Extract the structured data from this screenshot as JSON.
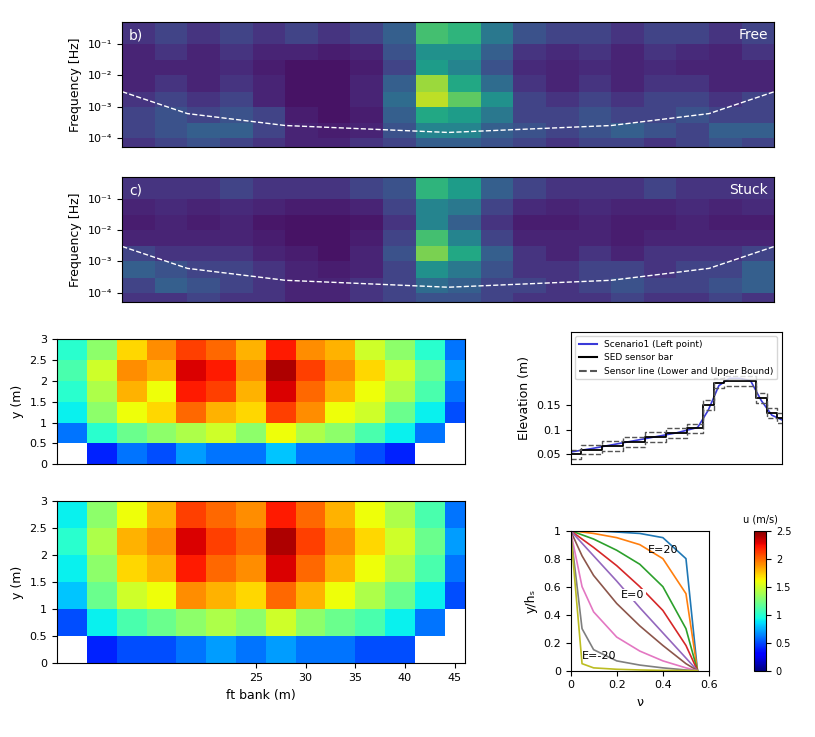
{
  "chart_data": [
    {
      "type": "heatmap",
      "panel": "b)",
      "title": "Free",
      "y_label": "Frequency [Hz]",
      "log": "y",
      "tick_labels": "y",
      "xlim": [
        0,
        20
      ],
      "ylim": [
        5e-05,
        0.5
      ],
      "yticks": [
        {
          "value": 0.0001,
          "label": "10⁻⁴"
        },
        {
          "value": 0.001,
          "label": "10⁻³"
        },
        {
          "value": 0.01,
          "label": "10⁻²"
        },
        {
          "value": 0.1,
          "label": "10⁻¹"
        }
      ],
      "x_edges": [
        0,
        1,
        2,
        3,
        4,
        5,
        6,
        7,
        8,
        9,
        10,
        11,
        12,
        13,
        14,
        15,
        16,
        17,
        18,
        19,
        20
      ],
      "y_edges": [
        5e-05,
        0.0001,
        0.0003,
        0.001,
        0.003,
        0.01,
        0.03,
        0.1,
        0.5
      ],
      "color_range": [
        0,
        1
      ],
      "cells": [
        [
          0.15,
          0.2,
          0.25,
          0.2,
          0.15,
          0.1,
          0.1,
          0.15,
          0.2,
          0.3,
          0.3,
          0.25,
          0.2,
          0.15,
          0.2,
          0.2,
          0.15,
          0.2,
          0.25,
          0.2
        ],
        [
          0.2,
          0.25,
          0.3,
          0.3,
          0.2,
          0.1,
          0.08,
          0.1,
          0.25,
          0.45,
          0.45,
          0.3,
          0.25,
          0.2,
          0.25,
          0.3,
          0.25,
          0.2,
          0.3,
          0.3
        ],
        [
          0.2,
          0.25,
          0.2,
          0.25,
          0.2,
          0.08,
          0.05,
          0.08,
          0.3,
          0.6,
          0.55,
          0.4,
          0.2,
          0.2,
          0.25,
          0.2,
          0.2,
          0.25,
          0.2,
          0.2
        ],
        [
          0.15,
          0.2,
          0.15,
          0.2,
          0.1,
          0.05,
          0.05,
          0.1,
          0.35,
          0.9,
          0.75,
          0.5,
          0.2,
          0.15,
          0.2,
          0.15,
          0.2,
          0.2,
          0.15,
          0.2
        ],
        [
          0.1,
          0.15,
          0.1,
          0.15,
          0.1,
          0.05,
          0.05,
          0.1,
          0.3,
          0.85,
          0.6,
          0.35,
          0.15,
          0.1,
          0.15,
          0.1,
          0.15,
          0.15,
          0.1,
          0.1
        ],
        [
          0.1,
          0.1,
          0.1,
          0.12,
          0.08,
          0.05,
          0.05,
          0.08,
          0.2,
          0.55,
          0.45,
          0.25,
          0.12,
          0.1,
          0.12,
          0.1,
          0.12,
          0.1,
          0.1,
          0.1
        ],
        [
          0.1,
          0.15,
          0.1,
          0.15,
          0.1,
          0.1,
          0.08,
          0.1,
          0.25,
          0.5,
          0.5,
          0.3,
          0.15,
          0.12,
          0.15,
          0.1,
          0.15,
          0.12,
          0.1,
          0.15
        ],
        [
          0.15,
          0.2,
          0.15,
          0.2,
          0.15,
          0.2,
          0.15,
          0.2,
          0.3,
          0.7,
          0.65,
          0.4,
          0.25,
          0.2,
          0.2,
          0.15,
          0.2,
          0.2,
          0.15,
          0.2
        ]
      ],
      "coi": {
        "x": [
          0,
          2,
          5,
          10,
          15,
          18,
          20
        ],
        "y": [
          0.003,
          0.0006,
          0.00025,
          0.00015,
          0.00025,
          0.0006,
          0.003
        ]
      }
    },
    {
      "type": "heatmap",
      "panel": "c)",
      "title": "Stuck",
      "y_label": "Frequency [Hz]",
      "log": "y",
      "tick_labels": "y",
      "xlim": [
        0,
        20
      ],
      "ylim": [
        5e-05,
        0.5
      ],
      "yticks": [
        {
          "value": 0.0001,
          "label": "10⁻⁴"
        },
        {
          "value": 0.001,
          "label": "10⁻³"
        },
        {
          "value": 0.01,
          "label": "10⁻²"
        },
        {
          "value": 0.1,
          "label": "10⁻¹"
        }
      ],
      "x_edges": [
        0,
        1,
        2,
        3,
        4,
        5,
        6,
        7,
        8,
        9,
        10,
        11,
        12,
        13,
        14,
        15,
        16,
        17,
        18,
        19,
        20
      ],
      "y_edges": [
        5e-05,
        0.0001,
        0.0003,
        0.001,
        0.003,
        0.01,
        0.03,
        0.1,
        0.5
      ],
      "color_range": [
        0,
        1
      ],
      "cells": [
        [
          0.15,
          0.15,
          0.2,
          0.15,
          0.15,
          0.1,
          0.1,
          0.15,
          0.2,
          0.25,
          0.25,
          0.2,
          0.15,
          0.15,
          0.15,
          0.2,
          0.15,
          0.15,
          0.2,
          0.15
        ],
        [
          0.2,
          0.3,
          0.25,
          0.2,
          0.15,
          0.1,
          0.1,
          0.15,
          0.2,
          0.35,
          0.3,
          0.2,
          0.2,
          0.15,
          0.2,
          0.25,
          0.2,
          0.2,
          0.25,
          0.3
        ],
        [
          0.3,
          0.25,
          0.2,
          0.2,
          0.15,
          0.1,
          0.08,
          0.1,
          0.2,
          0.5,
          0.4,
          0.25,
          0.15,
          0.15,
          0.2,
          0.2,
          0.15,
          0.2,
          0.2,
          0.3
        ],
        [
          0.2,
          0.15,
          0.15,
          0.15,
          0.1,
          0.08,
          0.05,
          0.1,
          0.25,
          0.8,
          0.6,
          0.3,
          0.15,
          0.1,
          0.15,
          0.1,
          0.15,
          0.15,
          0.15,
          0.2
        ],
        [
          0.1,
          0.1,
          0.1,
          0.1,
          0.08,
          0.05,
          0.05,
          0.08,
          0.2,
          0.7,
          0.45,
          0.2,
          0.1,
          0.1,
          0.1,
          0.08,
          0.1,
          0.1,
          0.1,
          0.1
        ],
        [
          0.08,
          0.1,
          0.08,
          0.1,
          0.06,
          0.05,
          0.05,
          0.06,
          0.15,
          0.45,
          0.3,
          0.15,
          0.08,
          0.08,
          0.1,
          0.08,
          0.08,
          0.1,
          0.08,
          0.08
        ],
        [
          0.1,
          0.12,
          0.1,
          0.12,
          0.1,
          0.08,
          0.08,
          0.1,
          0.2,
          0.45,
          0.4,
          0.2,
          0.12,
          0.1,
          0.12,
          0.1,
          0.1,
          0.12,
          0.1,
          0.12
        ],
        [
          0.15,
          0.15,
          0.15,
          0.2,
          0.15,
          0.15,
          0.15,
          0.2,
          0.25,
          0.65,
          0.55,
          0.3,
          0.2,
          0.15,
          0.15,
          0.15,
          0.2,
          0.15,
          0.15,
          0.15
        ]
      ],
      "coi": {
        "x": [
          0,
          2,
          5,
          10,
          15,
          18,
          20
        ],
        "y": [
          0.003,
          0.0006,
          0.00025,
          0.00015,
          0.00025,
          0.0006,
          0.003
        ]
      }
    },
    {
      "type": "heatmap",
      "y_label": "y (m)",
      "tick_labels": "y",
      "xlim": [
        5,
        46
      ],
      "ylim": [
        0,
        3
      ],
      "yticks": [
        0,
        0.5,
        1,
        1.5,
        2,
        2.5,
        3
      ],
      "x_edges": [
        5,
        8,
        11,
        14,
        17,
        20,
        23,
        26,
        29,
        32,
        35,
        38,
        41,
        44,
        46
      ],
      "y_edges": [
        0,
        0.5,
        1,
        1.5,
        2,
        2.5,
        3
      ],
      "color_range": [
        0,
        2.5
      ],
      "cells": [
        [
          null,
          0.4,
          0.6,
          0.5,
          0.7,
          0.6,
          0.6,
          0.8,
          0.6,
          0.6,
          0.5,
          0.4,
          null,
          null
        ],
        [
          0.6,
          1.0,
          1.2,
          1.3,
          1.4,
          1.5,
          1.3,
          1.6,
          1.4,
          1.3,
          1.1,
          0.9,
          0.6,
          null
        ],
        [
          0.9,
          1.3,
          1.6,
          1.7,
          2.0,
          1.8,
          1.7,
          2.1,
          1.9,
          1.6,
          1.5,
          1.2,
          0.9,
          0.5
        ],
        [
          1.0,
          1.4,
          1.8,
          1.6,
          2.2,
          2.1,
          1.8,
          2.3,
          2.0,
          1.8,
          1.6,
          1.4,
          1.1,
          0.6
        ],
        [
          1.1,
          1.5,
          1.9,
          1.8,
          2.3,
          2.2,
          1.9,
          2.4,
          2.1,
          1.9,
          1.7,
          1.5,
          1.2,
          0.7
        ],
        [
          1.0,
          1.3,
          1.7,
          1.9,
          2.1,
          2.0,
          1.8,
          2.2,
          1.9,
          1.8,
          1.5,
          1.3,
          1.0,
          0.6
        ]
      ]
    },
    {
      "type": "heatmap",
      "x_label": "ft bank (m)",
      "y_label": "y (m)",
      "xlim": [
        5,
        46
      ],
      "ylim": [
        0,
        3
      ],
      "xticks": [
        25,
        30,
        35,
        40,
        45
      ],
      "yticks": [
        0,
        0.5,
        1,
        1.5,
        2,
        2.5,
        3
      ],
      "x_edges": [
        5,
        8,
        11,
        14,
        17,
        20,
        23,
        26,
        29,
        32,
        35,
        38,
        41,
        44,
        46
      ],
      "y_edges": [
        0,
        0.5,
        1,
        1.5,
        2,
        2.5,
        3
      ],
      "color_range": [
        0,
        2.5
      ],
      "colorbar": {
        "label": "u (m/s)",
        "range": [
          0,
          2.5
        ],
        "ticks": [
          0,
          0.5,
          1,
          1.5,
          2,
          2.5
        ]
      },
      "cells": [
        [
          null,
          0.4,
          0.5,
          0.5,
          0.6,
          0.7,
          0.6,
          0.7,
          0.6,
          0.6,
          0.5,
          0.5,
          null,
          null
        ],
        [
          0.5,
          0.9,
          1.1,
          1.2,
          1.3,
          1.4,
          1.3,
          1.5,
          1.3,
          1.2,
          1.1,
          0.9,
          0.6,
          null
        ],
        [
          0.8,
          1.2,
          1.5,
          1.6,
          1.9,
          1.8,
          1.7,
          2.0,
          1.8,
          1.6,
          1.4,
          1.2,
          0.9,
          0.5
        ],
        [
          0.9,
          1.3,
          1.7,
          1.8,
          2.2,
          2.0,
          1.9,
          2.3,
          2.0,
          1.8,
          1.6,
          1.4,
          1.1,
          0.6
        ],
        [
          1.0,
          1.4,
          1.8,
          1.9,
          2.3,
          2.1,
          2.0,
          2.4,
          2.1,
          1.9,
          1.7,
          1.5,
          1.2,
          0.7
        ],
        [
          0.9,
          1.3,
          1.6,
          1.8,
          2.1,
          2.0,
          1.9,
          2.2,
          2.0,
          1.8,
          1.6,
          1.4,
          1.1,
          0.6
        ]
      ]
    },
    {
      "type": "line",
      "y_label": "Elevation (m)",
      "tick_labels": "y",
      "legend": "upper left",
      "xlim": [
        0,
        10
      ],
      "ylim": [
        0.03,
        0.3
      ],
      "yticks": [
        0.05,
        0.1,
        0.15
      ],
      "x": [
        0,
        1,
        2,
        3,
        4,
        5,
        6,
        6.5,
        7,
        7.5,
        8,
        8.5,
        9,
        9.5,
        10
      ],
      "series": [
        {
          "name": "Scenario1 (Left point)",
          "color": "#3a3ad8",
          "line_style": "solid",
          "values": [
            0.055,
            0.062,
            0.07,
            0.078,
            0.086,
            0.094,
            0.105,
            0.14,
            0.19,
            0.205,
            0.205,
            0.2,
            0.16,
            0.13,
            0.12
          ]
        },
        {
          "name": "SED sensor bar",
          "color": "#000000",
          "type": "step",
          "line_style": "solid",
          "values": [
            0.05,
            0.06,
            0.068,
            0.076,
            0.085,
            0.093,
            0.103,
            0.15,
            0.195,
            0.2,
            0.2,
            0.2,
            0.165,
            0.135,
            0.125
          ]
        },
        {
          "name": "Sensor line (Lower and Upper Bound)",
          "color": "#555555",
          "type": "step",
          "line_style": "dashed",
          "lower": [
            0.04,
            0.05,
            0.058,
            0.066,
            0.075,
            0.083,
            0.093,
            0.14,
            0.185,
            0.19,
            0.19,
            0.19,
            0.155,
            0.125,
            0.115
          ],
          "upper": [
            0.06,
            0.07,
            0.078,
            0.086,
            0.095,
            0.103,
            0.113,
            0.16,
            0.205,
            0.21,
            0.21,
            0.21,
            0.175,
            0.145,
            0.135
          ]
        }
      ]
    },
    {
      "type": "line",
      "x_label": "ν",
      "y_label": "y/hₛ",
      "xlim": [
        0,
        0.6
      ],
      "ylim": [
        0,
        1
      ],
      "xticks": [
        0,
        0.2,
        0.4,
        0.6
      ],
      "yticks": [
        0,
        0.2,
        0.4,
        0.6,
        0.8,
        1
      ],
      "x": [
        0,
        0.05,
        0.1,
        0.2,
        0.3,
        0.4,
        0.5,
        0.55
      ],
      "series": [
        {
          "E": 20,
          "label": "E=20",
          "values": [
            1,
            1,
            1,
            0.99,
            0.98,
            0.95,
            0.8,
            0
          ]
        },
        {
          "E": 10,
          "values": [
            1,
            0.99,
            0.98,
            0.95,
            0.9,
            0.8,
            0.55,
            0
          ]
        },
        {
          "E": 5,
          "values": [
            1,
            0.97,
            0.94,
            0.86,
            0.76,
            0.6,
            0.3,
            0
          ]
        },
        {
          "E": 2,
          "values": [
            1,
            0.94,
            0.88,
            0.75,
            0.6,
            0.43,
            0.18,
            0
          ]
        },
        {
          "E": 0,
          "label": "E=0",
          "values": [
            1,
            0.91,
            0.82,
            0.64,
            0.45,
            0.27,
            0.09,
            0
          ]
        },
        {
          "E": -2,
          "values": [
            1,
            0.82,
            0.68,
            0.48,
            0.32,
            0.18,
            0.05,
            0
          ]
        },
        {
          "E": -5,
          "values": [
            1,
            0.6,
            0.42,
            0.24,
            0.14,
            0.07,
            0.02,
            0
          ]
        },
        {
          "E": -10,
          "values": [
            1,
            0.3,
            0.15,
            0.07,
            0.04,
            0.02,
            0.005,
            0
          ]
        },
        {
          "E": -20,
          "label": "E=-20",
          "values": [
            1,
            0.05,
            0.02,
            0.01,
            0.005,
            0.002,
            0.001,
            0
          ]
        }
      ]
    }
  ]
}
